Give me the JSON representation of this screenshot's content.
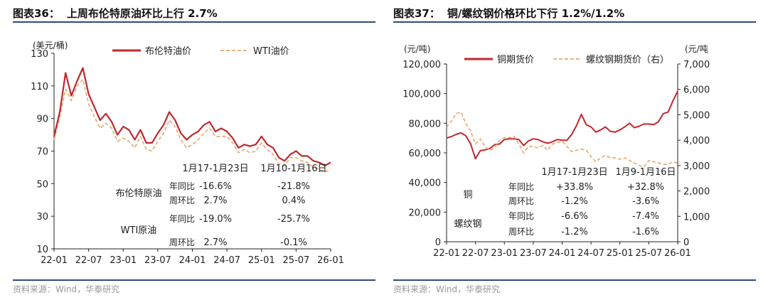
{
  "panels": [
    {
      "title_num": "图表36：",
      "title_text": "上周布伦特原油环比上行 2.7%",
      "source": "资料来源：Wind，华泰研究"
    },
    {
      "title_num": "图表37：",
      "title_text": "铜/螺纹钢价格环比下行 1.2%/1.2%",
      "source": "资料来源：Wind，华泰研究"
    }
  ],
  "colors": {
    "primary": "#c0272d",
    "secondary": "#e8a86a",
    "rule": "#2f4b7c"
  },
  "chart_data": [
    {
      "type": "line",
      "unit_label": "(美元/桶)",
      "x_ticks": [
        "22-01",
        "22-07",
        "23-01",
        "23-07",
        "24-01",
        "24-07",
        "25-01",
        "25-07",
        "26-01"
      ],
      "ylim": [
        10,
        130
      ],
      "y_ticks": [
        10,
        30,
        50,
        70,
        90,
        110,
        130
      ],
      "grid": false,
      "legend_position": "top",
      "series": [
        {
          "name": "布伦特油价",
          "style": "solid",
          "points": [
            [
              "2022-01",
              79
            ],
            [
              "2022-02",
              94
            ],
            [
              "2022-03",
              118
            ],
            [
              "2022-04",
              104
            ],
            [
              "2022-05",
              113
            ],
            [
              "2022-06",
              121
            ],
            [
              "2022-07",
              105
            ],
            [
              "2022-08",
              97
            ],
            [
              "2022-09",
              89
            ],
            [
              "2022-10",
              93
            ],
            [
              "2022-11",
              88
            ],
            [
              "2022-12",
              80
            ],
            [
              "2023-01",
              85
            ],
            [
              "2023-02",
              83
            ],
            [
              "2023-03",
              77
            ],
            [
              "2023-04",
              83
            ],
            [
              "2023-05",
              75
            ],
            [
              "2023-06",
              75
            ],
            [
              "2023-07",
              81
            ],
            [
              "2023-08",
              86
            ],
            [
              "2023-09",
              94
            ],
            [
              "2023-10",
              89
            ],
            [
              "2023-11",
              81
            ],
            [
              "2023-12",
              77
            ],
            [
              "2024-01",
              80
            ],
            [
              "2024-02",
              82
            ],
            [
              "2024-03",
              86
            ],
            [
              "2024-04",
              88
            ],
            [
              "2024-05",
              82
            ],
            [
              "2024-06",
              84
            ],
            [
              "2024-07",
              82
            ],
            [
              "2024-08",
              78
            ],
            [
              "2024-09",
              72
            ],
            [
              "2024-10",
              74
            ],
            [
              "2024-11",
              73
            ],
            [
              "2024-12",
              74
            ],
            [
              "2025-01",
              79
            ],
            [
              "2025-02",
              74
            ],
            [
              "2025-03",
              72
            ],
            [
              "2025-04",
              66
            ],
            [
              "2025-05",
              64
            ],
            [
              "2025-06",
              68
            ],
            [
              "2025-07",
              70
            ],
            [
              "2025-08",
              67
            ],
            [
              "2025-09",
              67
            ],
            [
              "2025-10",
              64
            ],
            [
              "2025-11",
              63
            ],
            [
              "2025-12",
              61
            ],
            [
              "2026-01",
              63
            ]
          ]
        },
        {
          "name": "WTI油价",
          "style": "dashed",
          "points": [
            [
              "2022-01",
              77
            ],
            [
              "2022-02",
              91
            ],
            [
              "2022-03",
              108
            ],
            [
              "2022-04",
              101
            ],
            [
              "2022-05",
              110
            ],
            [
              "2022-06",
              114
            ],
            [
              "2022-07",
              99
            ],
            [
              "2022-08",
              91
            ],
            [
              "2022-09",
              84
            ],
            [
              "2022-10",
              87
            ],
            [
              "2022-11",
              84
            ],
            [
              "2022-12",
              76
            ],
            [
              "2023-01",
              78
            ],
            [
              "2023-02",
              76
            ],
            [
              "2023-03",
              72
            ],
            [
              "2023-04",
              79
            ],
            [
              "2023-05",
              71
            ],
            [
              "2023-06",
              70
            ],
            [
              "2023-07",
              76
            ],
            [
              "2023-08",
              81
            ],
            [
              "2023-09",
              89
            ],
            [
              "2023-10",
              85
            ],
            [
              "2023-11",
              77
            ],
            [
              "2023-12",
              72
            ],
            [
              "2024-01",
              74
            ],
            [
              "2024-02",
              77
            ],
            [
              "2024-03",
              81
            ],
            [
              "2024-04",
              84
            ],
            [
              "2024-05",
              79
            ],
            [
              "2024-06",
              79
            ],
            [
              "2024-07",
              79
            ],
            [
              "2024-08",
              75
            ],
            [
              "2024-09",
              69
            ],
            [
              "2024-10",
              71
            ],
            [
              "2024-11",
              69
            ],
            [
              "2024-12",
              70
            ],
            [
              "2025-01",
              75
            ],
            [
              "2025-02",
              71
            ],
            [
              "2025-03",
              68
            ],
            [
              "2025-04",
              62
            ],
            [
              "2025-05",
              61
            ],
            [
              "2025-06",
              66
            ],
            [
              "2025-07",
              66
            ],
            [
              "2025-08",
              64
            ],
            [
              "2025-09",
              63
            ],
            [
              "2025-10",
              60
            ],
            [
              "2025-11",
              59
            ],
            [
              "2025-12",
              57
            ],
            [
              "2026-01",
              59
            ]
          ]
        }
      ],
      "table": {
        "col_headers": [
          "1月17-1月23日",
          "1月10-1月16日"
        ],
        "groups": [
          {
            "name": "布伦特原油",
            "rows": [
              {
                "label": "年同比",
                "values": [
                  "-16.6%",
                  "-21.8%"
                ]
              },
              {
                "label": "周环比",
                "values": [
                  "2.7%",
                  "0.4%"
                ]
              }
            ]
          },
          {
            "name": "WTI原油",
            "rows": [
              {
                "label": "年同比",
                "values": [
                  "-19.0%",
                  "-25.7%"
                ]
              },
              {
                "label": "周环比",
                "values": [
                  "2.7%",
                  "-0.1%"
                ]
              }
            ]
          }
        ]
      }
    },
    {
      "type": "line",
      "left_unit_label": "(元/吨)",
      "right_unit_label": "(元/吨",
      "x_ticks": [
        "22-01",
        "22-07",
        "23-01",
        "23-07",
        "24-01",
        "24-07",
        "25-01",
        "25-07",
        "26-01"
      ],
      "ylim_left": [
        0,
        120000
      ],
      "y_ticks_left": [
        "0",
        "20,000",
        "40,000",
        "60,000",
        "80,000",
        "100,000",
        "120,000"
      ],
      "ylim_right": [
        0,
        7000
      ],
      "y_ticks_right": [
        "0",
        "1,000",
        "2,000",
        "3,000",
        "4,000",
        "5,000",
        "6,000",
        "7,000"
      ],
      "grid": false,
      "legend_position": "top",
      "series": [
        {
          "name": "铜期货价",
          "axis": "left",
          "style": "solid",
          "points": [
            [
              "2022-01",
              70000
            ],
            [
              "2022-02",
              71000
            ],
            [
              "2022-03",
              72500
            ],
            [
              "2022-04",
              73500
            ],
            [
              "2022-05",
              71500
            ],
            [
              "2022-06",
              66000
            ],
            [
              "2022-07",
              56000
            ],
            [
              "2022-08",
              61500
            ],
            [
              "2022-09",
              62000
            ],
            [
              "2022-10",
              63000
            ],
            [
              "2022-11",
              65500
            ],
            [
              "2022-12",
              66000
            ],
            [
              "2023-01",
              69000
            ],
            [
              "2023-02",
              69500
            ],
            [
              "2023-03",
              69500
            ],
            [
              "2023-04",
              69000
            ],
            [
              "2023-05",
              65000
            ],
            [
              "2023-06",
              68000
            ],
            [
              "2023-07",
              69500
            ],
            [
              "2023-08",
              69000
            ],
            [
              "2023-09",
              67500
            ],
            [
              "2023-10",
              66500
            ],
            [
              "2023-11",
              67500
            ],
            [
              "2023-12",
              69000
            ],
            [
              "2024-01",
              68500
            ],
            [
              "2024-02",
              68500
            ],
            [
              "2024-03",
              72500
            ],
            [
              "2024-04",
              78500
            ],
            [
              "2024-05",
              86000
            ],
            [
              "2024-06",
              79000
            ],
            [
              "2024-07",
              77500
            ],
            [
              "2024-08",
              74000
            ],
            [
              "2024-09",
              75500
            ],
            [
              "2024-10",
              77500
            ],
            [
              "2024-11",
              74500
            ],
            [
              "2024-12",
              74000
            ],
            [
              "2025-01",
              75500
            ],
            [
              "2025-02",
              77500
            ],
            [
              "2025-03",
              80000
            ],
            [
              "2025-04",
              77000
            ],
            [
              "2025-05",
              78000
            ],
            [
              "2025-06",
              79500
            ],
            [
              "2025-07",
              79500
            ],
            [
              "2025-08",
              79000
            ],
            [
              "2025-09",
              81000
            ],
            [
              "2025-10",
              86500
            ],
            [
              "2025-11",
              87500
            ],
            [
              "2025-12",
              95000
            ],
            [
              "2026-01",
              101500
            ]
          ]
        },
        {
          "name": "螺纹钢期货价（右）",
          "axis": "right",
          "style": "dashed",
          "points": [
            [
              "2022-01",
              4500
            ],
            [
              "2022-02",
              4750
            ],
            [
              "2022-03",
              5050
            ],
            [
              "2022-04",
              5100
            ],
            [
              "2022-05",
              4650
            ],
            [
              "2022-06",
              4350
            ],
            [
              "2022-07",
              3850
            ],
            [
              "2022-08",
              4050
            ],
            [
              "2022-09",
              3750
            ],
            [
              "2022-10",
              3600
            ],
            [
              "2022-11",
              3700
            ],
            [
              "2022-12",
              4000
            ],
            [
              "2023-01",
              4100
            ],
            [
              "2023-02",
              4100
            ],
            [
              "2023-03",
              4150
            ],
            [
              "2023-04",
              3850
            ],
            [
              "2023-05",
              3500
            ],
            [
              "2023-06",
              3750
            ],
            [
              "2023-07",
              3750
            ],
            [
              "2023-08",
              3700
            ],
            [
              "2023-09",
              3800
            ],
            [
              "2023-10",
              3600
            ],
            [
              "2023-11",
              3850
            ],
            [
              "2023-12",
              3900
            ],
            [
              "2024-01",
              3950
            ],
            [
              "2024-02",
              3750
            ],
            [
              "2024-03",
              3550
            ],
            [
              "2024-04",
              3600
            ],
            [
              "2024-05",
              3650
            ],
            [
              "2024-06",
              3600
            ],
            [
              "2024-07",
              3350
            ],
            [
              "2024-08",
              3150
            ],
            [
              "2024-09",
              3300
            ],
            [
              "2024-10",
              3400
            ],
            [
              "2024-11",
              3300
            ],
            [
              "2024-12",
              3300
            ],
            [
              "2025-01",
              3250
            ],
            [
              "2025-02",
              3300
            ],
            [
              "2025-03",
              3200
            ],
            [
              "2025-04",
              3100
            ],
            [
              "2025-05",
              3000
            ],
            [
              "2025-06",
              2950
            ],
            [
              "2025-07",
              3200
            ],
            [
              "2025-08",
              3150
            ],
            [
              "2025-09",
              3100
            ],
            [
              "2025-10",
              3050
            ],
            [
              "2025-11",
              3050
            ],
            [
              "2025-12",
              3150
            ],
            [
              "2026-01",
              3100
            ]
          ]
        }
      ],
      "table": {
        "col_headers": [
          "1月17-1月23日",
          "1月9-1月16日"
        ],
        "groups": [
          {
            "name": "铜",
            "rows": [
              {
                "label": "年同比",
                "values": [
                  "+33.8%",
                  "+32.8%"
                ]
              },
              {
                "label": "周环比",
                "values": [
                  "-1.2%",
                  "-3.6%"
                ]
              }
            ]
          },
          {
            "name": "螺纹钢",
            "rows": [
              {
                "label": "年同比",
                "values": [
                  "-6.6%",
                  "-7.4%"
                ]
              },
              {
                "label": "周环比",
                "values": [
                  "-1.2%",
                  "-1.6%"
                ]
              }
            ]
          }
        ]
      }
    }
  ]
}
